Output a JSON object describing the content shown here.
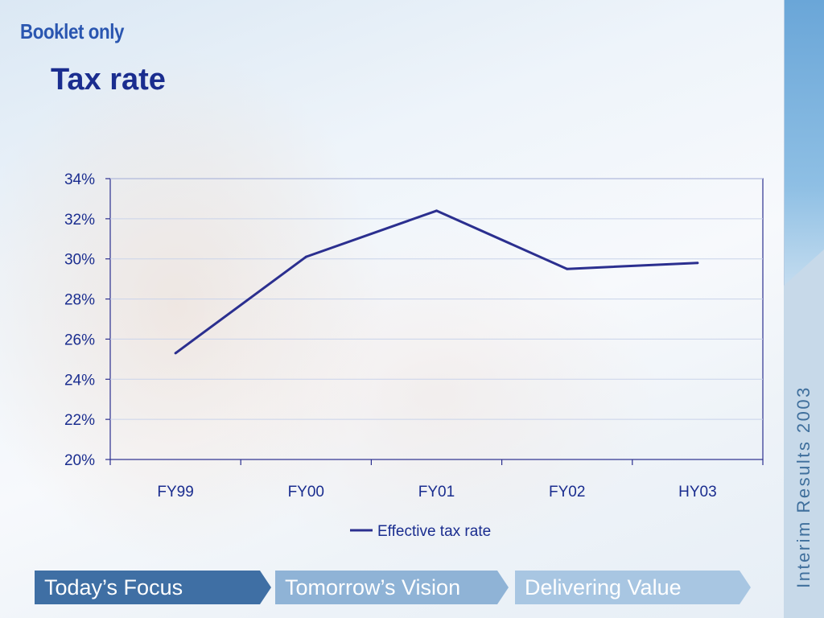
{
  "header": {
    "booklet_label": "Booklet only",
    "title": "Tax rate"
  },
  "sidebar": {
    "caption": "Interim Results 2003"
  },
  "nav": {
    "items": [
      {
        "label": "Today’s Focus"
      },
      {
        "label": "Tomorrow’s Vision"
      },
      {
        "label": "Delivering Value"
      }
    ]
  },
  "colors": {
    "series": "#2b2f8f",
    "text": "#1a2d8f",
    "frame": "#2b2f8f",
    "grid": "#c9d3ea"
  },
  "chart_data": {
    "type": "line",
    "categories": [
      "FY99",
      "FY00",
      "FY01",
      "FY02",
      "HY03"
    ],
    "series": [
      {
        "name": "Effective tax rate",
        "values": [
          25.3,
          30.1,
          32.4,
          29.5,
          29.8
        ]
      }
    ],
    "ylim": [
      20,
      34
    ],
    "y_ticks": [
      "20%",
      "22%",
      "24%",
      "26%",
      "28%",
      "30%",
      "32%",
      "34%"
    ],
    "y_tick_values": [
      20,
      22,
      24,
      26,
      28,
      30,
      32,
      34
    ],
    "grid": true,
    "legend_position": "bottom"
  }
}
